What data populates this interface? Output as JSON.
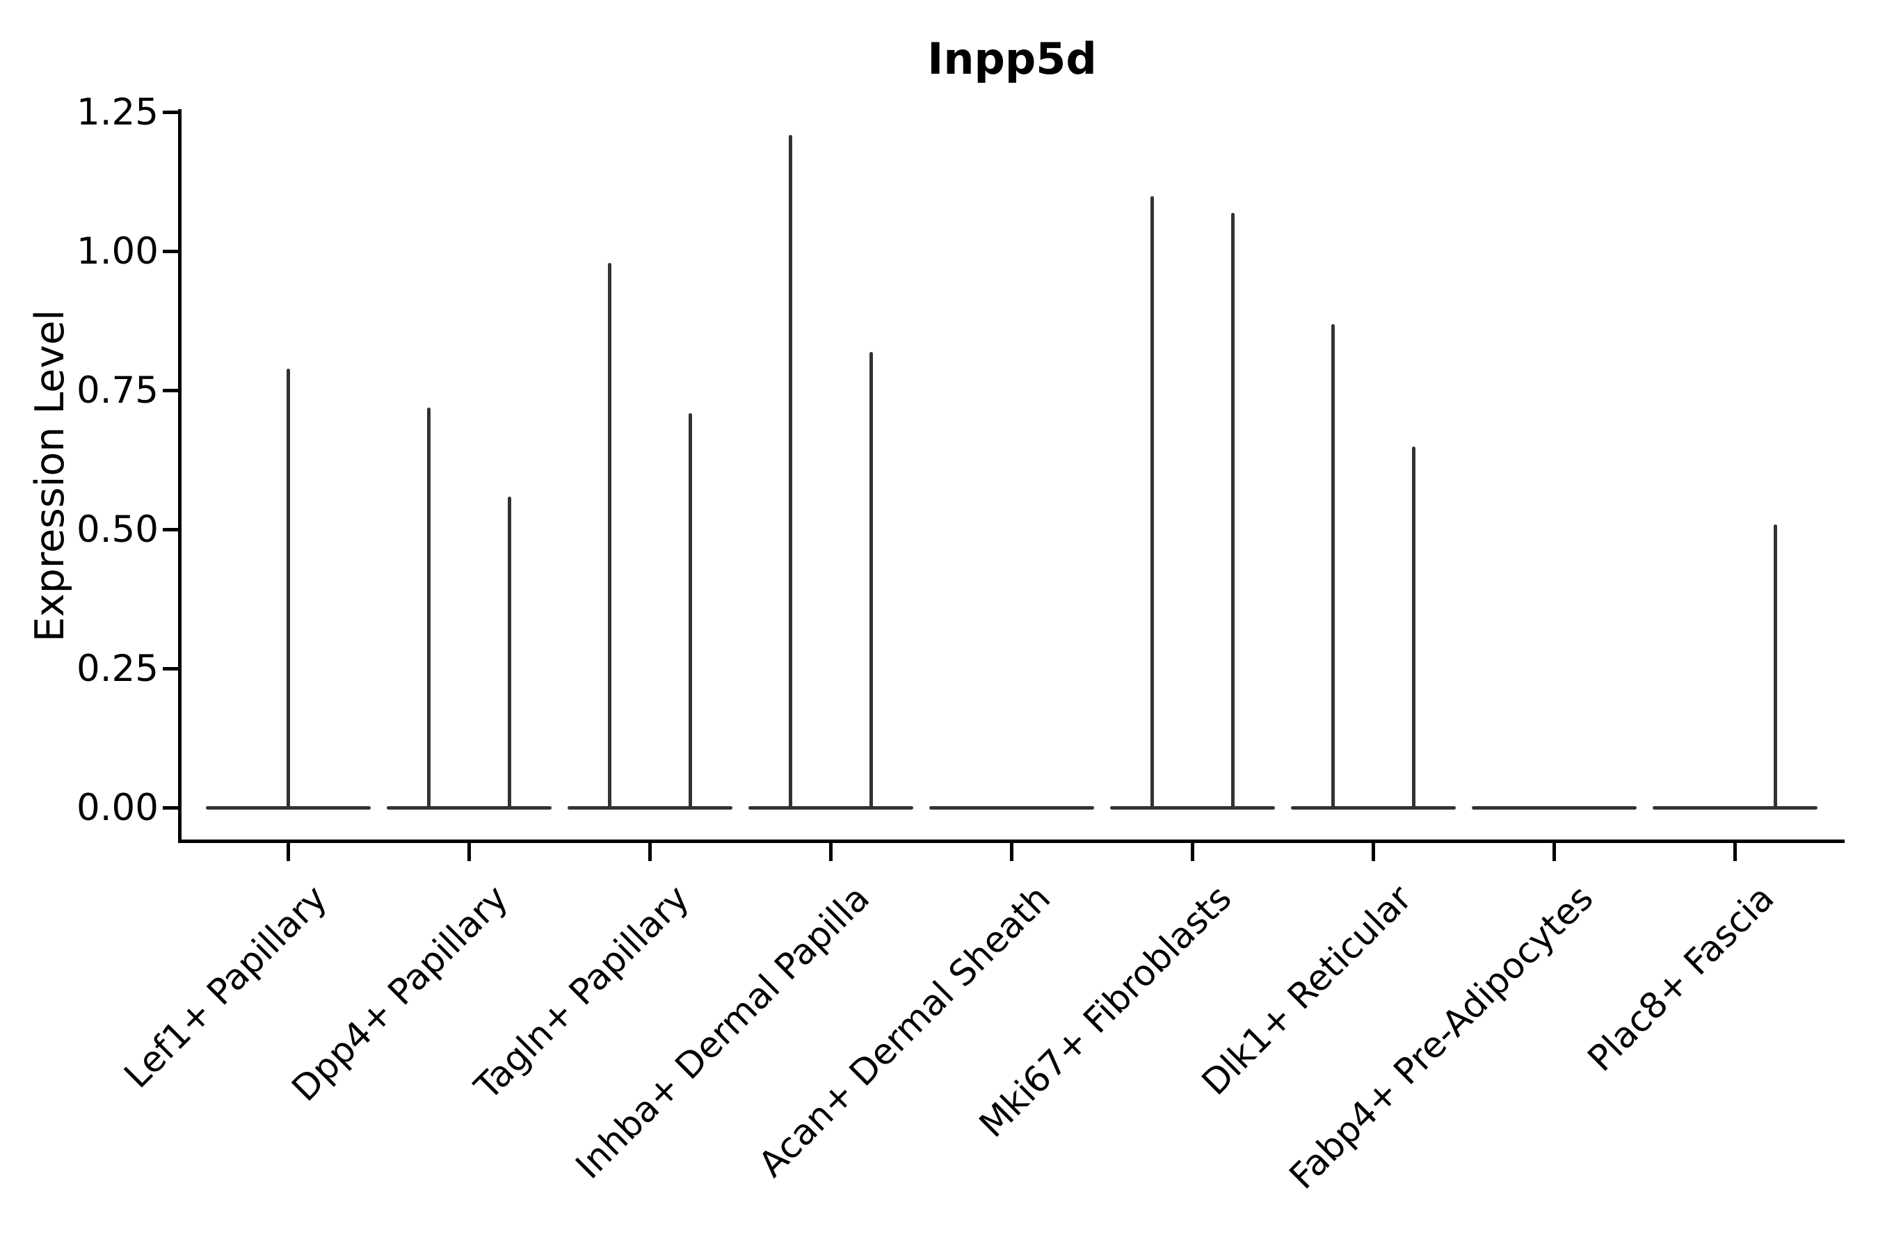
{
  "title": "Inpp5d",
  "y_axis": {
    "label": "Expression Level",
    "tick_labels": [
      "0.00",
      "0.25",
      "0.50",
      "0.75",
      "1.00",
      "1.25"
    ]
  },
  "colors": {
    "violin": "#333333",
    "axis": "#000000",
    "text": "#000000",
    "background": "#ffffff"
  },
  "chart_data": {
    "type": "violin",
    "title": "Inpp5d",
    "xlabel": "",
    "ylabel": "Expression Level",
    "ylim": [
      -0.07,
      1.26
    ],
    "yticks": [
      0.0,
      0.25,
      0.5,
      0.75,
      1.0,
      1.25
    ],
    "grid": false,
    "legend": "none",
    "categories": [
      "Lef1+ Papillary",
      "Dpp4+ Papillary",
      "Tagln+ Papillary",
      "Inhba+ Dermal Papilla",
      "Acan+ Dermal Sheath",
      "Mki67+ Fibroblasts",
      "Dlk1+ Reticular",
      "Fabp4+ Pre-Adipocytes",
      "Plac8+ Fascia"
    ],
    "violins": [
      {
        "category": "Lef1+ Papillary",
        "baseline_value": 0,
        "spikes": [
          {
            "side": "center",
            "max": 0.79
          }
        ]
      },
      {
        "category": "Dpp4+ Papillary",
        "baseline_value": 0,
        "spikes": [
          {
            "side": "left",
            "max": 0.72
          },
          {
            "side": "right",
            "max": 0.56
          }
        ]
      },
      {
        "category": "Tagln+ Papillary",
        "baseline_value": 0,
        "spikes": [
          {
            "side": "left",
            "max": 0.98
          },
          {
            "side": "right",
            "max": 0.71
          }
        ]
      },
      {
        "category": "Inhba+ Dermal Papilla",
        "baseline_value": 0,
        "spikes": [
          {
            "side": "left",
            "max": 1.21
          },
          {
            "side": "right",
            "max": 0.82
          }
        ]
      },
      {
        "category": "Acan+ Dermal Sheath",
        "baseline_value": 0,
        "spikes": []
      },
      {
        "category": "Mki67+ Fibroblasts",
        "baseline_value": 0,
        "spikes": [
          {
            "side": "left",
            "max": 1.1
          },
          {
            "side": "right",
            "max": 1.07
          }
        ]
      },
      {
        "category": "Dlk1+ Reticular",
        "baseline_value": 0,
        "spikes": [
          {
            "side": "left",
            "max": 0.87
          },
          {
            "side": "right",
            "max": 0.65
          }
        ]
      },
      {
        "category": "Fabp4+ Pre-Adipocytes",
        "baseline_value": 0,
        "spikes": []
      },
      {
        "category": "Plac8+ Fascia",
        "baseline_value": 0,
        "spikes": [
          {
            "side": "right",
            "max": 0.51
          }
        ]
      }
    ]
  }
}
